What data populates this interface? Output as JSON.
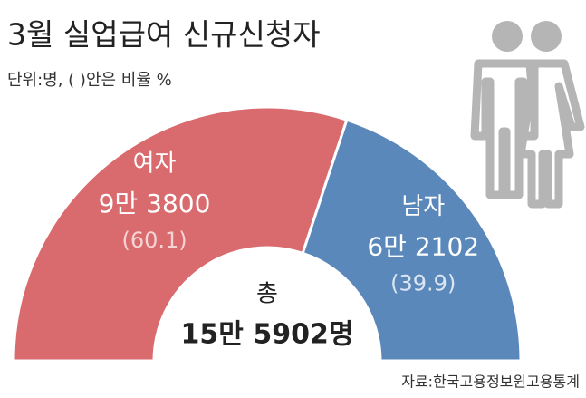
{
  "chart_data": {
    "type": "pie",
    "half": true,
    "title": "3월 실업급여 신규신청자",
    "subtitle": "단위:명, ( )안은 비율 %",
    "categories": [
      "여자",
      "남자"
    ],
    "values": [
      93800,
      62102
    ],
    "value_labels": [
      "9만 3800",
      "6만 2102"
    ],
    "percentages": [
      60.1,
      39.9
    ],
    "percentage_labels": [
      "(60.1)",
      "(39.9)"
    ],
    "colors": [
      "#d96a6d",
      "#5a88bb"
    ],
    "total_label": "총",
    "total": 155902,
    "total_value_label": "15만 5902명",
    "source": "자료:한국고용정보원고용통계"
  }
}
